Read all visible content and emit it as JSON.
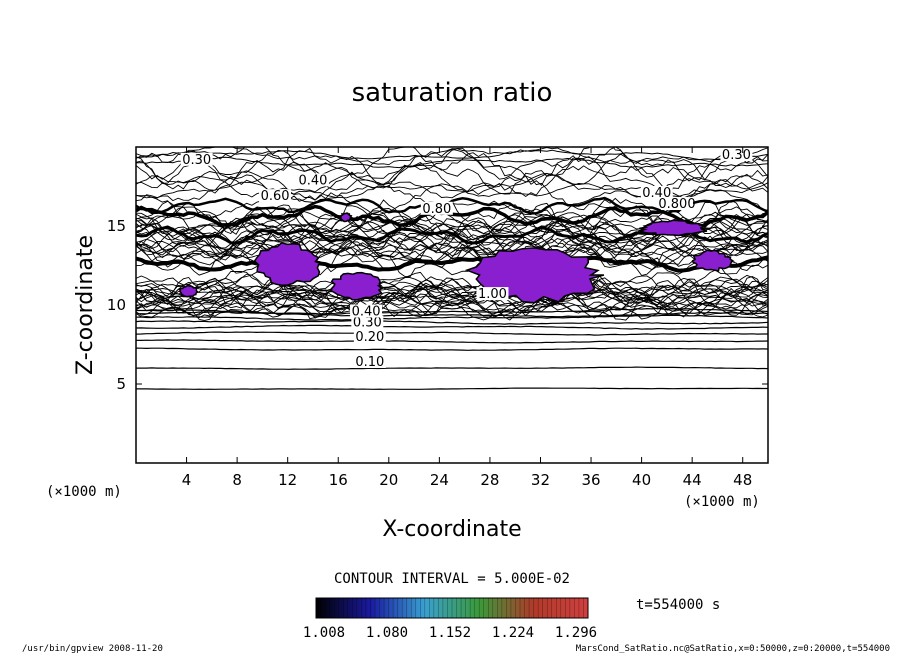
{
  "chart_data": {
    "type": "contour",
    "title": "saturation ratio",
    "xlabel": "X-coordinate",
    "ylabel": "Z-coordinate",
    "x_unit": "(×1000 m)",
    "y_unit": "(×1000 m)",
    "xlim": [
      0,
      50
    ],
    "ylim": [
      0,
      20
    ],
    "x_ticks": [
      4,
      8,
      12,
      16,
      20,
      24,
      28,
      32,
      36,
      40,
      44,
      48
    ],
    "y_ticks": [
      5,
      10,
      15
    ],
    "contour_interval_text": "CONTOUR INTERVAL = 5.000E-02",
    "time_text": "t=554000 s",
    "colorbar": {
      "ticks": [
        "1.008",
        "1.080",
        "1.152",
        "1.224",
        "1.296"
      ],
      "min": 1.008,
      "max": 1.296,
      "colors": [
        "#000000",
        "#1a1aa0",
        "#3aa0d0",
        "#3a9a3a",
        "#b03a2a",
        "#d04040"
      ]
    },
    "contour_labels": [
      {
        "text": "0.10",
        "x": 18.5,
        "y": 6.2
      },
      {
        "text": "0.20",
        "x": 18.5,
        "y": 7.8
      },
      {
        "text": "0.30",
        "x": 18.3,
        "y": 8.7
      },
      {
        "text": "0.40",
        "x": 18.2,
        "y": 9.4
      },
      {
        "text": "0.30",
        "x": 4.8,
        "y": 19.0
      },
      {
        "text": "0.30",
        "x": 47.5,
        "y": 19.3
      },
      {
        "text": "0.40",
        "x": 14.0,
        "y": 17.7
      },
      {
        "text": "0.40",
        "x": 41.2,
        "y": 16.9
      },
      {
        "text": "0.60",
        "x": 11.0,
        "y": 16.7
      },
      {
        "text": "0.80",
        "x": 23.8,
        "y": 15.9
      },
      {
        "text": "0.800",
        "x": 42.8,
        "y": 16.2
      },
      {
        "text": "1.00",
        "x": 28.2,
        "y": 10.5
      }
    ],
    "supersaturated_regions": [
      {
        "x": [
          3.5,
          4.8
        ],
        "y": [
          10.5,
          11.2
        ]
      },
      {
        "x": [
          9.5,
          14.5
        ],
        "y": [
          11.3,
          13.8
        ]
      },
      {
        "x": [
          15.5,
          19.5
        ],
        "y": [
          10.4,
          12.0
        ]
      },
      {
        "x": [
          16.2,
          17.0
        ],
        "y": [
          15.3,
          15.8
        ]
      },
      {
        "x": [
          26.5,
          36.5
        ],
        "y": [
          10.3,
          13.5
        ]
      },
      {
        "x": [
          40.0,
          45.0
        ],
        "y": [
          14.4,
          15.3
        ]
      },
      {
        "x": [
          44.0,
          47.0
        ],
        "y": [
          12.2,
          13.4
        ]
      }
    ],
    "grid": false
  },
  "footer": {
    "left": "/usr/bin/gpview  2008-11-20",
    "right": "MarsCond_SatRatio.nc@SatRatio,x=0:50000,z=0:20000,t=554000"
  }
}
